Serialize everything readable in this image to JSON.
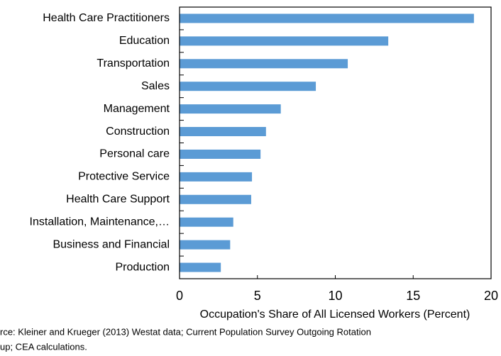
{
  "chart_data": {
    "type": "hbar",
    "categories": [
      "Health Care Practitioners",
      "Education",
      "Transportation",
      "Sales",
      "Management",
      "Construction",
      "Personal care",
      "Protective Service",
      "Health Care Support",
      "Installation, Maintenance,…",
      "Business and Financial",
      "Production"
    ],
    "values": [
      18.9,
      13.4,
      10.8,
      8.75,
      6.5,
      5.55,
      5.2,
      4.65,
      4.6,
      3.45,
      3.25,
      2.65
    ],
    "color": "#5b9bd5",
    "xlabel": "Occupation's Share of All Licensed Workers (Percent)",
    "xlim": [
      0,
      20
    ],
    "xticks": [
      0,
      5,
      10,
      15,
      20
    ],
    "notes": [
      "rce: Kleiner and Krueger (2013) Westat data;  Current Population Survey Outgoing Rotation",
      "up; CEA calculations."
    ]
  }
}
